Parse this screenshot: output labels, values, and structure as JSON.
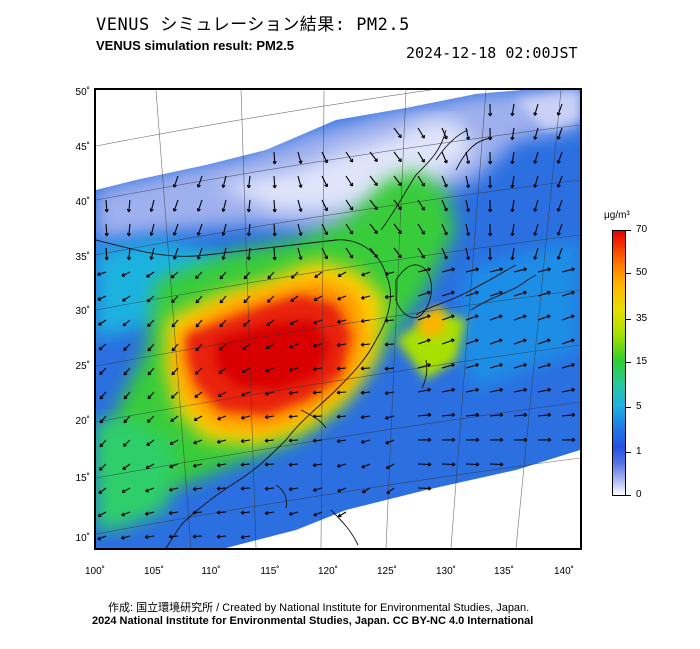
{
  "header": {
    "title_jp": "VENUS シミュレーション結果: PM2.5",
    "title_en": "VENUS simulation result: PM2.5",
    "timestamp": "2024-12-18 02:00JST"
  },
  "map": {
    "region": "East Asia",
    "lat_labels": [
      "50˚",
      "45˚",
      "40˚",
      "35˚",
      "30˚",
      "25˚",
      "20˚",
      "15˚",
      "10˚"
    ],
    "lon_labels": [
      "100˚",
      "105˚",
      "110˚",
      "115˚",
      "120˚",
      "125˚",
      "130˚",
      "135˚",
      "140˚"
    ],
    "lat_range": [
      10,
      50
    ],
    "lon_range": [
      100,
      140
    ],
    "layers": [
      "pm2.5-concentration",
      "wind-vectors",
      "coastlines",
      "graticule"
    ]
  },
  "colorbar": {
    "unit": "μg/m³",
    "labels": [
      "70",
      "50",
      "35",
      "15",
      "5",
      "1",
      "0"
    ],
    "colors": [
      "#e60000",
      "#ff6a00",
      "#ffb300",
      "#e8e000",
      "#2ecf2e",
      "#1fb2e0",
      "#2450e0",
      "#a7b3f0",
      "#ffffff"
    ]
  },
  "footer": {
    "credit": "作成: 国立環境研究所 / Created by National Institute for Environmental Studies, Japan.",
    "license": "2024 National Institute for Environmental Studies, Japan. CC BY-NC 4.0 International"
  }
}
